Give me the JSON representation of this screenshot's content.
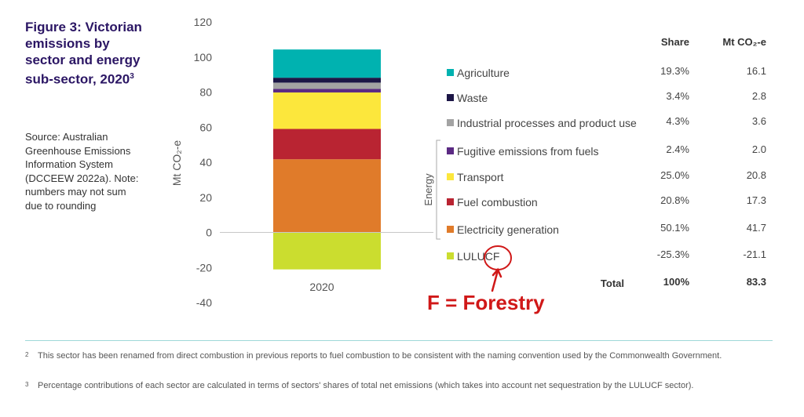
{
  "figure": {
    "title": "Figure 3: Victorian emissions by sector and energy sub-sector, 2020",
    "title_superscript": "3",
    "source_note": "Source: Australian Greenhouse Emissions Information System (DCCEEW 2022a). Note: numbers may not sum due to rounding"
  },
  "table": {
    "share_header": "Share",
    "mt_header": "Mt CO₂-e",
    "total_label": "Total",
    "total_share": "100%",
    "total_mt": "83.3",
    "energy_group_label": "Energy"
  },
  "annotation": {
    "text": "F = Forestry",
    "color": "#d01818"
  },
  "chart_data": {
    "type": "bar",
    "stacked": true,
    "categories": [
      "2020"
    ],
    "ylabel": "Mt CO₂-e",
    "ylim": [
      -40,
      120
    ],
    "yticks": [
      120,
      100,
      80,
      60,
      40,
      20,
      0,
      -20,
      -40
    ],
    "grid": false,
    "legend_placement": "right",
    "series": [
      {
        "name": "Agriculture",
        "values": [
          16.1
        ],
        "share": "19.3%",
        "mt": "16.1",
        "color": "#00b2b0"
      },
      {
        "name": "Waste",
        "values": [
          2.8
        ],
        "share": "3.4%",
        "mt": "2.8",
        "color": "#1c1646"
      },
      {
        "name": "Industrial processes and product use",
        "values": [
          3.6
        ],
        "share": "4.3%",
        "mt": "3.6",
        "color": "#a3a3a3"
      },
      {
        "name": "Fugitive emissions from fuels",
        "values": [
          2.0
        ],
        "share": "2.4%",
        "mt": "2.0",
        "color": "#5b2a83"
      },
      {
        "name": "Transport",
        "values": [
          20.8
        ],
        "share": "25.0%",
        "mt": "20.8",
        "color": "#fce73c"
      },
      {
        "name": "Fuel combustion",
        "values": [
          17.3
        ],
        "share": "20.8%",
        "mt": "17.3",
        "color": "#b92432"
      },
      {
        "name": "Electricity generation",
        "values": [
          41.7
        ],
        "share": "50.1%",
        "mt": "41.7",
        "color": "#e07b2a"
      },
      {
        "name": "LULUCF",
        "values": [
          -21.1
        ],
        "share": "-25.3%",
        "mt": "-21.1",
        "color": "#cbdd2f"
      }
    ]
  },
  "footnotes": [
    {
      "num": "2",
      "text": "This sector has been renamed from direct combustion in previous reports to fuel combustion to be consistent with the naming convention used by the Commonwealth Government."
    },
    {
      "num": "3",
      "text": "Percentage contributions of each sector are calculated in terms of sectors' shares of total net emissions (which takes into account net sequestration by the LULUCF sector)."
    }
  ]
}
